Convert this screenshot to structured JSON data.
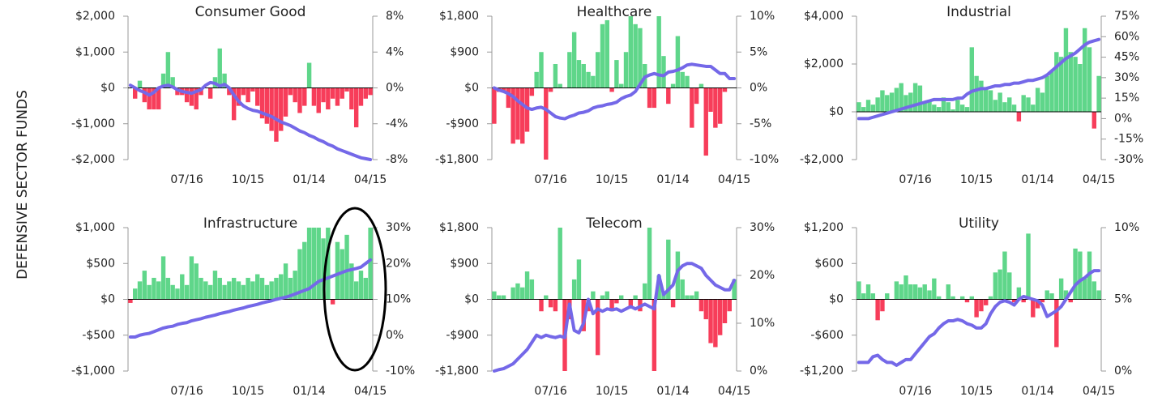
{
  "ylabel": "DEFENSIVE SECTOR FUNDS",
  "chart_data": [
    {
      "type": "bar_line",
      "title": "Consumer Good",
      "categories": [
        null,
        null,
        null,
        null,
        null,
        null,
        null,
        null,
        null,
        null,
        null,
        null,
        "07/16",
        null,
        null,
        null,
        null,
        null,
        null,
        null,
        null,
        null,
        null,
        null,
        null,
        "10/15",
        null,
        null,
        null,
        null,
        null,
        null,
        null,
        null,
        null,
        null,
        null,
        null,
        "01/14",
        null,
        null,
        null,
        null,
        null,
        null,
        null,
        null,
        null,
        null,
        null,
        null,
        "04/15"
      ],
      "values": [
        0,
        -300,
        200,
        -400,
        -600,
        -600,
        -600,
        400,
        1000,
        300,
        -200,
        -200,
        -400,
        -500,
        -600,
        -200,
        0,
        -300,
        300,
        1100,
        400,
        -200,
        -900,
        -500,
        -200,
        -400,
        -100,
        -500,
        -850,
        -1000,
        -1200,
        -1500,
        -1200,
        -800,
        -200,
        -400,
        -700,
        -500,
        700,
        -500,
        -700,
        -400,
        -600,
        -300,
        -500,
        -300,
        -100,
        -600,
        -1100,
        -500,
        -300,
        -200
      ],
      "line_values": [
        0.3,
        0,
        -0.3,
        -0.5,
        -0.8,
        -0.5,
        0,
        0.2,
        0.3,
        0.1,
        -0.2,
        -0.4,
        -0.5,
        -0.6,
        -0.4,
        -0.2,
        0.3,
        0.6,
        0.5,
        0.2,
        0.4,
        0,
        -0.8,
        -1.5,
        -2,
        -2.3,
        -2.5,
        -2.6,
        -2.8,
        -3,
        -3.2,
        -3.5,
        -3.8,
        -4,
        -4.2,
        -4.5,
        -4.8,
        -5,
        -5.3,
        -5.5,
        -5.8,
        -6,
        -6.3,
        -6.5,
        -6.8,
        -7,
        -7.2,
        -7.4,
        -7.6,
        -7.8,
        -7.9,
        -8
      ],
      "ylim": [
        -2000,
        2000
      ],
      "yticks": [
        {
          "value": -2000,
          "label": "-$2,000"
        },
        {
          "value": -1000,
          "label": "-$1,000"
        },
        {
          "value": 0,
          "label": "$0"
        },
        {
          "value": 1000,
          "label": "$1,000"
        },
        {
          "value": 2000,
          "label": "$2,000"
        }
      ],
      "y2lim": [
        -8,
        8
      ],
      "y2ticks": [
        {
          "value": -8,
          "label": "-8%"
        },
        {
          "value": -4,
          "label": "-4%"
        },
        {
          "value": 0,
          "label": "0%"
        },
        {
          "value": 4,
          "label": "4%"
        },
        {
          "value": 8,
          "label": "8%"
        }
      ],
      "positive_color": "#5fd68a",
      "negative_color": "#f73d5a",
      "line_color": "#7468e8"
    },
    {
      "type": "bar_line",
      "title": "Healthcare",
      "categories": [
        null,
        null,
        null,
        null,
        null,
        null,
        null,
        null,
        null,
        null,
        null,
        null,
        "07/16",
        null,
        null,
        null,
        null,
        null,
        null,
        null,
        null,
        null,
        null,
        null,
        null,
        "10/15",
        null,
        null,
        null,
        null,
        null,
        null,
        null,
        null,
        null,
        null,
        null,
        null,
        "01/14",
        null,
        null,
        null,
        null,
        null,
        null,
        null,
        null,
        null,
        null,
        null,
        null,
        "04/15"
      ],
      "values": [
        -900,
        -100,
        -100,
        -500,
        -1400,
        -1300,
        -1400,
        -1100,
        -200,
        400,
        900,
        -1800,
        -100,
        600,
        100,
        0,
        900,
        1400,
        700,
        600,
        400,
        300,
        900,
        1600,
        1700,
        -100,
        700,
        100,
        900,
        1800,
        1600,
        1500,
        600,
        -500,
        -500,
        1800,
        800,
        -400,
        100,
        1300,
        400,
        300,
        -1000,
        -400,
        100,
        -1700,
        -600,
        -1000,
        -900,
        -100,
        0,
        0
      ],
      "line_values": [
        0,
        -0.3,
        -0.5,
        -0.8,
        -1.2,
        -1.8,
        -2.3,
        -2.8,
        -3,
        -2.8,
        -2.7,
        -3,
        -3.5,
        -4,
        -4.2,
        -4.3,
        -4,
        -3.8,
        -3.5,
        -3.4,
        -3.2,
        -2.8,
        -2.6,
        -2.5,
        -2.3,
        -2.2,
        -2,
        -1.5,
        -1.2,
        -1,
        -0.5,
        0.5,
        1.5,
        1.8,
        2,
        1.8,
        1.7,
        2.2,
        2.3,
        2.5,
        2.8,
        3.2,
        3.3,
        3.2,
        3.1,
        3,
        3,
        2.5,
        2,
        2,
        1.3,
        1.3
      ],
      "ylim": [
        -1800,
        1800
      ],
      "yticks": [
        {
          "value": -1800,
          "label": "-$1,800"
        },
        {
          "value": -900,
          "label": "-$900"
        },
        {
          "value": 0,
          "label": "$0"
        },
        {
          "value": 900,
          "label": "$900"
        },
        {
          "value": 1800,
          "label": "$1,800"
        }
      ],
      "y2lim": [
        -10,
        10
      ],
      "y2ticks": [
        {
          "value": -10,
          "label": "-10%"
        },
        {
          "value": -5,
          "label": "-5%"
        },
        {
          "value": 0,
          "label": "0%"
        },
        {
          "value": 5,
          "label": "5%"
        },
        {
          "value": 10,
          "label": "10%"
        }
      ],
      "positive_color": "#5fd68a",
      "negative_color": "#f73d5a",
      "line_color": "#7468e8"
    },
    {
      "type": "bar_line",
      "title": "Industrial",
      "categories": [
        null,
        null,
        null,
        null,
        null,
        null,
        null,
        null,
        null,
        null,
        null,
        null,
        "07/16",
        null,
        null,
        null,
        null,
        null,
        null,
        null,
        null,
        null,
        null,
        null,
        null,
        "10/15",
        null,
        null,
        null,
        null,
        null,
        null,
        null,
        null,
        null,
        null,
        null,
        null,
        "01/14",
        null,
        null,
        null,
        null,
        null,
        null,
        null,
        null,
        null,
        null,
        null,
        null,
        "04/15"
      ],
      "values": [
        400,
        200,
        500,
        300,
        600,
        900,
        700,
        800,
        1000,
        1200,
        700,
        800,
        1200,
        1100,
        400,
        500,
        300,
        200,
        600,
        400,
        100,
        500,
        300,
        200,
        2700,
        1500,
        1300,
        1000,
        900,
        500,
        800,
        400,
        600,
        300,
        -400,
        700,
        600,
        300,
        1000,
        800,
        1500,
        1700,
        2500,
        2300,
        3500,
        2500,
        2300,
        2000,
        3500,
        2700,
        -700,
        1500
      ],
      "line_values": [
        0,
        0,
        0,
        1,
        2,
        3,
        4,
        5,
        6,
        7,
        8,
        9,
        10,
        11,
        12,
        13,
        14,
        14,
        14,
        14,
        14,
        15,
        15,
        18,
        20,
        21,
        22,
        22,
        23,
        24,
        24,
        25,
        25,
        26,
        26,
        27,
        28,
        28,
        29,
        30,
        32,
        35,
        38,
        41,
        44,
        46,
        48,
        51,
        54,
        56,
        57,
        58
      ],
      "ylim": [
        -2000,
        4000
      ],
      "yticks": [
        {
          "value": -2000,
          "label": "-$2,000"
        },
        {
          "value": 0,
          "label": "$0"
        },
        {
          "value": 2000,
          "label": "$2,000"
        },
        {
          "value": 4000,
          "label": "$4,000"
        }
      ],
      "y2lim": [
        -30,
        75
      ],
      "y2ticks": [
        {
          "value": -30,
          "label": "-30%"
        },
        {
          "value": -15,
          "label": "-15%"
        },
        {
          "value": 0,
          "label": "0%"
        },
        {
          "value": 15,
          "label": "15%"
        },
        {
          "value": 30,
          "label": "30%"
        },
        {
          "value": 45,
          "label": "45%"
        },
        {
          "value": 60,
          "label": "60%"
        },
        {
          "value": 75,
          "label": "75%"
        }
      ],
      "positive_color": "#5fd68a",
      "negative_color": "#f73d5a",
      "line_color": "#7468e8"
    },
    {
      "type": "bar_line",
      "title": "Infrastructure",
      "categories": [
        null,
        null,
        null,
        null,
        null,
        null,
        null,
        null,
        null,
        null,
        null,
        null,
        "07/16",
        null,
        null,
        null,
        null,
        null,
        null,
        null,
        null,
        null,
        null,
        null,
        null,
        "10/15",
        null,
        null,
        null,
        null,
        null,
        null,
        null,
        null,
        null,
        null,
        null,
        null,
        "01/14",
        null,
        null,
        null,
        null,
        null,
        null,
        null,
        null,
        null,
        null,
        null,
        null,
        "04/15"
      ],
      "values": [
        -50,
        150,
        250,
        400,
        200,
        300,
        250,
        600,
        300,
        200,
        150,
        350,
        200,
        600,
        500,
        300,
        250,
        200,
        400,
        300,
        200,
        250,
        300,
        250,
        200,
        300,
        250,
        350,
        300,
        200,
        250,
        300,
        350,
        500,
        300,
        400,
        700,
        800,
        1000,
        1000,
        1000,
        850,
        1000,
        -70,
        800,
        700,
        900,
        500,
        250,
        400,
        300,
        1000
      ],
      "line_values": [
        -0.5,
        -0.5,
        0,
        0.3,
        0.5,
        1,
        1.5,
        2,
        2.3,
        2.5,
        3,
        3.3,
        3.5,
        4,
        4.3,
        4.6,
        5,
        5.3,
        5.6,
        6,
        6.3,
        6.6,
        7,
        7.3,
        7.6,
        8,
        8.3,
        8.6,
        9,
        9.3,
        9.6,
        10,
        10.3,
        10.6,
        11,
        11.5,
        12,
        12.5,
        13,
        14,
        15,
        15.5,
        16,
        16.5,
        17,
        17.5,
        18,
        18.3,
        18.6,
        19,
        20,
        21
      ],
      "ylim": [
        -1000,
        1000
      ],
      "yticks": [
        {
          "value": -1000,
          "label": "-$1,000"
        },
        {
          "value": -500,
          "label": "-$500"
        },
        {
          "value": 0,
          "label": "$0"
        },
        {
          "value": 500,
          "label": "$500"
        },
        {
          "value": 1000,
          "label": "$1,000"
        }
      ],
      "y2lim": [
        -10,
        30
      ],
      "y2ticks": [
        {
          "value": -10,
          "label": "-10%"
        },
        {
          "value": 0,
          "label": "0%"
        },
        {
          "value": 10,
          "label": "10%"
        },
        {
          "value": 20,
          "label": "20%"
        },
        {
          "value": 30,
          "label": "30%"
        }
      ],
      "positive_color": "#5fd68a",
      "negative_color": "#f73d5a",
      "line_color": "#7468e8"
    },
    {
      "type": "bar_line",
      "title": "Telecom",
      "categories": [
        null,
        null,
        null,
        null,
        null,
        null,
        null,
        null,
        null,
        null,
        null,
        null,
        "07/16",
        null,
        null,
        null,
        null,
        null,
        null,
        null,
        null,
        null,
        null,
        null,
        null,
        "10/15",
        null,
        null,
        null,
        null,
        null,
        null,
        null,
        null,
        null,
        null,
        null,
        null,
        "01/14",
        null,
        null,
        null,
        null,
        null,
        null,
        null,
        null,
        null,
        null,
        null,
        null,
        "04/15"
      ],
      "values": [
        200,
        100,
        100,
        0,
        300,
        400,
        300,
        700,
        500,
        0,
        -300,
        100,
        -200,
        -300,
        1800,
        -1800,
        -500,
        500,
        1000,
        -800,
        -300,
        200,
        -1400,
        100,
        200,
        -300,
        -100,
        100,
        0,
        -200,
        100,
        -300,
        400,
        1800,
        -1800,
        600,
        200,
        1500,
        -200,
        1200,
        500,
        100,
        100,
        200,
        -300,
        -500,
        -1100,
        -1200,
        -900,
        -600,
        -300,
        500
      ],
      "line_values": [
        0,
        0.3,
        0.5,
        1,
        1.5,
        2.5,
        3.5,
        4.5,
        6,
        7.5,
        7,
        7.5,
        7.2,
        7,
        7.3,
        7,
        14,
        8.5,
        8,
        10,
        15,
        12,
        13,
        12.5,
        13,
        12.8,
        13,
        12.5,
        13,
        13.5,
        13,
        13.5,
        14,
        13.5,
        13,
        20,
        16,
        17,
        18,
        21,
        22,
        22.5,
        22.5,
        22,
        21.5,
        20,
        19,
        18,
        17.5,
        17,
        17,
        19
      ],
      "ylim": [
        -1800,
        1800
      ],
      "yticks": [
        {
          "value": -1800,
          "label": "-$1,800"
        },
        {
          "value": -900,
          "label": "-$900"
        },
        {
          "value": 0,
          "label": "$0"
        },
        {
          "value": 900,
          "label": "$900"
        },
        {
          "value": 1800,
          "label": "$1,800"
        }
      ],
      "y2lim": [
        0,
        30
      ],
      "y2ticks": [
        {
          "value": 0,
          "label": "0%"
        },
        {
          "value": 10,
          "label": "10%"
        },
        {
          "value": 20,
          "label": "20%"
        },
        {
          "value": 30,
          "label": "30%"
        }
      ],
      "positive_color": "#5fd68a",
      "negative_color": "#f73d5a",
      "line_color": "#7468e8"
    },
    {
      "type": "bar_line",
      "title": "Utility",
      "categories": [
        null,
        null,
        null,
        null,
        null,
        null,
        null,
        null,
        null,
        null,
        null,
        null,
        "07/16",
        null,
        null,
        null,
        null,
        null,
        null,
        null,
        null,
        null,
        null,
        null,
        null,
        "10/15",
        null,
        null,
        null,
        null,
        null,
        null,
        null,
        null,
        null,
        null,
        null,
        null,
        "01/14",
        null,
        null,
        null,
        null,
        null,
        null,
        null,
        null,
        null,
        null,
        null,
        null,
        "04/15"
      ],
      "values": [
        300,
        100,
        250,
        100,
        -350,
        -200,
        100,
        0,
        300,
        250,
        400,
        250,
        250,
        200,
        250,
        150,
        350,
        50,
        0,
        250,
        50,
        0,
        50,
        -50,
        50,
        -300,
        -200,
        -100,
        50,
        450,
        500,
        800,
        450,
        -50,
        200,
        -50,
        1100,
        -300,
        -150,
        -50,
        150,
        100,
        -800,
        350,
        150,
        -50,
        850,
        800,
        350,
        800,
        300,
        150
      ],
      "line_values": [
        0.6,
        0.6,
        0.6,
        1,
        1.1,
        0.8,
        0.6,
        0.6,
        0.4,
        0.6,
        0.8,
        0.8,
        1.2,
        1.6,
        2,
        2.4,
        2.6,
        3,
        3.3,
        3.5,
        3.5,
        3.6,
        3.5,
        3.3,
        3.2,
        3,
        3,
        3.3,
        4,
        4.5,
        4.8,
        4.9,
        4.8,
        4.6,
        5,
        5.2,
        5.1,
        5,
        4.9,
        4.6,
        3.8,
        4,
        4.2,
        4.5,
        5,
        5.5,
        6,
        6.3,
        6.5,
        6.8,
        7,
        7
      ],
      "ylim": [
        -1200,
        1200
      ],
      "yticks": [
        {
          "value": -1200,
          "label": "-$1,200"
        },
        {
          "value": -600,
          "label": "-$600"
        },
        {
          "value": 0,
          "label": "$0"
        },
        {
          "value": 600,
          "label": "$600"
        },
        {
          "value": 1200,
          "label": "$1,200"
        }
      ],
      "y2lim": [
        0,
        10
      ],
      "y2ticks": [
        {
          "value": 0,
          "label": "0%"
        },
        {
          "value": 5,
          "label": "5%"
        },
        {
          "value": 10,
          "label": "10%"
        }
      ],
      "positive_color": "#5fd68a",
      "negative_color": "#f73d5a",
      "line_color": "#7468e8"
    }
  ]
}
